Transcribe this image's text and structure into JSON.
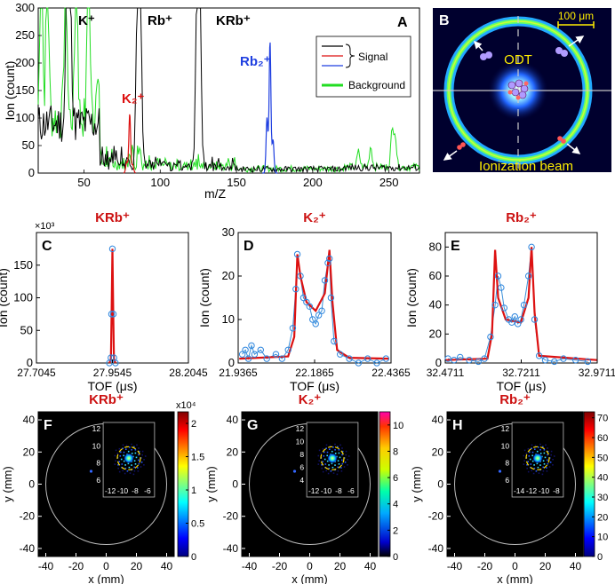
{
  "chart_data": [
    {
      "id": "A",
      "type": "line",
      "panel_letter": "A",
      "xlabel": "m/Z",
      "ylabel": "Ion (count)",
      "xlim": [
        20,
        270
      ],
      "ylim": [
        0,
        300
      ],
      "xticks": [
        50,
        100,
        150,
        200,
        250
      ],
      "yticks": [
        0,
        50,
        100,
        150,
        200,
        250,
        300
      ],
      "peak_labels": [
        {
          "text": "K⁺",
          "color": "#000000"
        },
        {
          "text": "Rb⁺",
          "color": "#000000"
        },
        {
          "text": "KRb⁺",
          "color": "#000000"
        },
        {
          "text": "Rb₂⁺",
          "color": "#1f3fe0"
        },
        {
          "text": "K₂⁺",
          "color": "#dd1111"
        }
      ],
      "legend": {
        "position": "top-right",
        "signal_label": "Signal",
        "background_label": "Background"
      },
      "series": [
        {
          "name": "Signal (black)",
          "color": "#000000",
          "peaks": [
            [
              39,
              300
            ],
            [
              41,
              300
            ],
            [
              85,
              300
            ],
            [
              87,
              300
            ],
            [
              124,
              300
            ],
            [
              126,
              300
            ]
          ]
        },
        {
          "name": "Signal K2 (red)",
          "color": "#dd1111",
          "peaks": [
            [
              78,
              20
            ],
            [
              80,
              108
            ],
            [
              82,
              15
            ]
          ]
        },
        {
          "name": "Signal Rb2 (blue)",
          "color": "#1f3fe0",
          "peaks": [
            [
              170,
              100
            ],
            [
              172,
              240
            ],
            [
              174,
              60
            ]
          ]
        },
        {
          "name": "Background",
          "color": "#22dd22",
          "peaks": [
            [
              22,
              300
            ],
            [
              26,
              300
            ],
            [
              38,
              300
            ],
            [
              45,
              300
            ],
            [
              53,
              300
            ],
            [
              59,
              110
            ],
            [
              230,
              28
            ],
            [
              238,
              38
            ],
            [
              252,
              62
            ],
            [
              254,
              60
            ]
          ]
        }
      ]
    },
    {
      "id": "B",
      "type": "image",
      "panel_letter": "B",
      "scale_label": "100 μm",
      "center_label": "ODT",
      "bottom_label": "Ionization beam"
    },
    {
      "id": "C",
      "type": "line",
      "panel_letter": "C",
      "title": "KRb⁺",
      "xlabel": "TOF (μs)",
      "ylabel": "Ion (count)",
      "exponent_label": "×10³",
      "xlim": [
        27.7045,
        28.2045
      ],
      "ylim": [
        0,
        200
      ],
      "xticks": [
        "27.7045",
        "27.9545",
        "28.2045"
      ],
      "yticks": [
        0,
        50,
        100,
        150
      ],
      "points": [
        [
          27.9445,
          0
        ],
        [
          27.9495,
          8
        ],
        [
          27.9515,
          75
        ],
        [
          27.9545,
          175
        ],
        [
          27.9575,
          75
        ],
        [
          27.9595,
          8
        ],
        [
          27.9645,
          0
        ]
      ],
      "fit": [
        [
          27.9445,
          0
        ],
        [
          27.9495,
          6
        ],
        [
          27.9515,
          70
        ],
        [
          27.9545,
          175
        ],
        [
          27.9575,
          70
        ],
        [
          27.9595,
          6
        ],
        [
          27.9645,
          0
        ]
      ]
    },
    {
      "id": "D",
      "type": "line",
      "panel_letter": "D",
      "title": "K₂⁺",
      "xlabel": "TOF (μs)",
      "ylabel": "Ion (count)",
      "xlim": [
        21.9365,
        22.4365
      ],
      "ylim": [
        0,
        30
      ],
      "xticks": [
        "21.9365",
        "22.1865",
        "22.4365"
      ],
      "yticks": [
        0,
        10,
        20,
        30
      ],
      "points": [
        [
          21.95,
          2
        ],
        [
          21.96,
          3
        ],
        [
          21.97,
          1
        ],
        [
          21.98,
          4
        ],
        [
          21.99,
          2
        ],
        [
          22.01,
          3
        ],
        [
          22.03,
          1
        ],
        [
          22.06,
          2
        ],
        [
          22.08,
          1
        ],
        [
          22.1,
          3
        ],
        [
          22.115,
          8
        ],
        [
          22.125,
          17
        ],
        [
          22.13,
          25
        ],
        [
          22.14,
          20
        ],
        [
          22.15,
          15
        ],
        [
          22.16,
          14
        ],
        [
          22.17,
          13
        ],
        [
          22.18,
          10
        ],
        [
          22.19,
          9
        ],
        [
          22.2,
          11
        ],
        [
          22.21,
          12
        ],
        [
          22.22,
          19
        ],
        [
          22.23,
          23
        ],
        [
          22.235,
          24
        ],
        [
          22.24,
          15
        ],
        [
          22.25,
          5
        ],
        [
          22.27,
          2
        ],
        [
          22.3,
          1
        ],
        [
          22.33,
          0
        ],
        [
          22.36,
          1
        ],
        [
          22.39,
          0
        ],
        [
          22.42,
          1
        ]
      ],
      "fit": [
        [
          21.94,
          1
        ],
        [
          22.1,
          1.5
        ],
        [
          22.12,
          6
        ],
        [
          22.13,
          25
        ],
        [
          22.14,
          20
        ],
        [
          22.16,
          14
        ],
        [
          22.19,
          12
        ],
        [
          22.22,
          16
        ],
        [
          22.235,
          26
        ],
        [
          22.245,
          14
        ],
        [
          22.26,
          3
        ],
        [
          22.3,
          1.2
        ],
        [
          22.43,
          1
        ]
      ]
    },
    {
      "id": "E",
      "type": "line",
      "panel_letter": "E",
      "title": "Rb₂⁺",
      "xlabel": "TOF (μs)",
      "ylabel": "Ion (count)",
      "xlim": [
        32.4711,
        32.9711
      ],
      "ylim": [
        0,
        90
      ],
      "xticks": [
        "32.4711",
        "32.7211",
        "32.9711"
      ],
      "yticks": [
        0,
        20,
        40,
        60,
        80
      ],
      "points": [
        [
          32.48,
          3
        ],
        [
          32.5,
          2
        ],
        [
          32.52,
          4
        ],
        [
          32.55,
          2
        ],
        [
          32.58,
          1
        ],
        [
          32.6,
          3
        ],
        [
          32.62,
          18
        ],
        [
          32.635,
          40
        ],
        [
          32.645,
          60
        ],
        [
          32.655,
          52
        ],
        [
          32.665,
          38
        ],
        [
          32.68,
          30
        ],
        [
          32.69,
          28
        ],
        [
          32.7,
          32
        ],
        [
          32.71,
          27
        ],
        [
          32.72,
          30
        ],
        [
          32.73,
          40
        ],
        [
          32.745,
          60
        ],
        [
          32.755,
          80
        ],
        [
          32.765,
          30
        ],
        [
          32.78,
          5
        ],
        [
          32.8,
          2
        ],
        [
          32.83,
          1
        ],
        [
          32.86,
          3
        ],
        [
          32.9,
          2
        ],
        [
          32.94,
          1
        ]
      ],
      "fit": [
        [
          32.47,
          2
        ],
        [
          32.61,
          3
        ],
        [
          32.625,
          20
        ],
        [
          32.635,
          78
        ],
        [
          32.645,
          45
        ],
        [
          32.67,
          30
        ],
        [
          32.72,
          28
        ],
        [
          32.745,
          45
        ],
        [
          32.755,
          80
        ],
        [
          32.765,
          35
        ],
        [
          32.78,
          5
        ],
        [
          32.97,
          2
        ]
      ]
    },
    {
      "id": "F",
      "type": "heatmap",
      "panel_letter": "F",
      "title": "KRb⁺",
      "xlabel": "x (mm)",
      "ylabel": "y (mm)",
      "xticks": [
        -40,
        -20,
        0,
        20,
        40
      ],
      "yticks": [
        -40,
        -20,
        0,
        20,
        40
      ],
      "colorbar_exponent": "x10⁴",
      "colorbar_ticks": [
        "0",
        "0.5",
        "1",
        "1.5",
        "2"
      ],
      "inset_xticks": [
        -12,
        -10,
        -8,
        -6
      ],
      "inset_yticks": [
        6,
        8,
        10,
        12
      ]
    },
    {
      "id": "G",
      "type": "heatmap",
      "panel_letter": "G",
      "title": "K₂⁺",
      "xlabel": "x (mm)",
      "ylabel": "y (mm)",
      "xticks": [
        -40,
        -20,
        0,
        20,
        40
      ],
      "yticks": [
        -40,
        -20,
        0,
        20,
        40
      ],
      "colorbar_ticks": [
        "0",
        "2",
        "4",
        "6",
        "8",
        "10"
      ],
      "inset_xticks": [
        -12,
        -10,
        -8,
        -6
      ],
      "inset_yticks": [
        4,
        6,
        8,
        10,
        12
      ]
    },
    {
      "id": "H",
      "type": "heatmap",
      "panel_letter": "H",
      "title": "Rb₂⁺",
      "xlabel": "x (mm)",
      "ylabel": "y (mm)",
      "xticks": [
        -40,
        -20,
        0,
        20,
        40
      ],
      "yticks": [
        -40,
        -20,
        0,
        20,
        40
      ],
      "colorbar_ticks": [
        "0",
        "10",
        "20",
        "30",
        "40",
        "50",
        "60",
        "70"
      ],
      "inset_xticks": [
        -14,
        -12,
        -10,
        -8
      ],
      "inset_yticks": [
        6,
        8,
        10,
        12
      ]
    }
  ]
}
